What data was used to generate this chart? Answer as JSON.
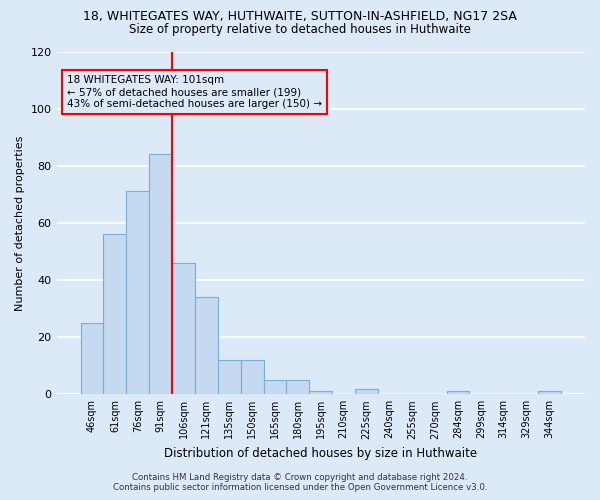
{
  "title1": "18, WHITEGATES WAY, HUTHWAITE, SUTTON-IN-ASHFIELD, NG17 2SA",
  "title2": "Size of property relative to detached houses in Huthwaite",
  "xlabel": "Distribution of detached houses by size in Huthwaite",
  "ylabel": "Number of detached properties",
  "footnote1": "Contains HM Land Registry data © Crown copyright and database right 2024.",
  "footnote2": "Contains public sector information licensed under the Open Government Licence v3.0.",
  "bar_labels": [
    "46sqm",
    "61sqm",
    "76sqm",
    "91sqm",
    "106sqm",
    "121sqm",
    "135sqm",
    "150sqm",
    "165sqm",
    "180sqm",
    "195sqm",
    "210sqm",
    "225sqm",
    "240sqm",
    "255sqm",
    "270sqm",
    "284sqm",
    "299sqm",
    "314sqm",
    "329sqm",
    "344sqm"
  ],
  "bar_values": [
    25,
    56,
    71,
    84,
    46,
    34,
    12,
    12,
    5,
    5,
    1,
    0,
    2,
    0,
    0,
    0,
    1,
    0,
    0,
    0,
    1
  ],
  "bar_color": "#c5d9f0",
  "bar_edge_color": "#7aadda",
  "vline_index": 4,
  "annotation_text_line1": "18 WHITEGATES WAY: 101sqm",
  "annotation_text_line2": "← 57% of detached houses are smaller (199)",
  "annotation_text_line3": "43% of semi-detached houses are larger (150) →",
  "vline_color": "red",
  "box_color": "red",
  "ylim": [
    0,
    120
  ],
  "yticks": [
    0,
    20,
    40,
    60,
    80,
    100,
    120
  ],
  "bg_color": "#dce9f7",
  "grid_color": "white"
}
